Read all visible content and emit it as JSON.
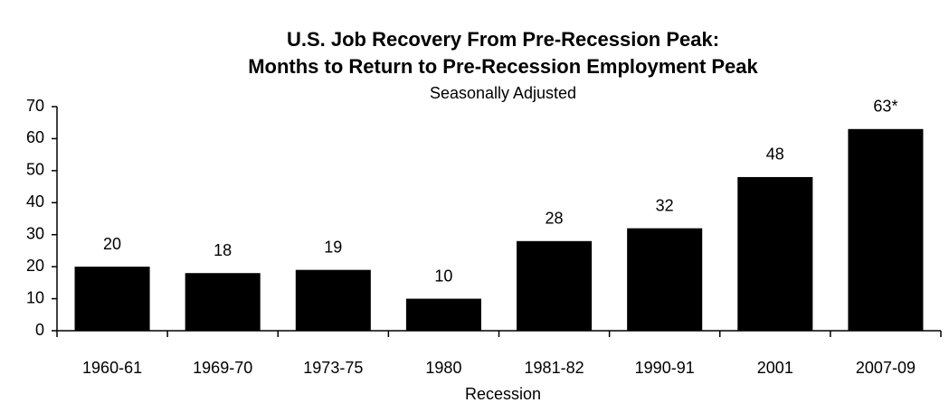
{
  "chart_data": {
    "type": "bar",
    "title": [
      "U.S. Job Recovery From Pre-Recession Peak:",
      "Months to Return to Pre-Recession Employment Peak"
    ],
    "subtitle": "Seasonally Adjusted",
    "x_label": "Recession",
    "categories": [
      "1960-61",
      "1969-70",
      "1973-75",
      "1980",
      "1981-82",
      "1990-91",
      "2001",
      "2007-09"
    ],
    "values": [
      20,
      18,
      19,
      10,
      28,
      32,
      48,
      63
    ],
    "value_labels": [
      "20",
      "18",
      "19",
      "10",
      "28",
      "32",
      "48",
      "63*"
    ],
    "color": "#000000",
    "ylim": [
      0,
      70
    ],
    "yticks": [
      0,
      10,
      20,
      30,
      40,
      50,
      60,
      70
    ],
    "grid": false
  }
}
